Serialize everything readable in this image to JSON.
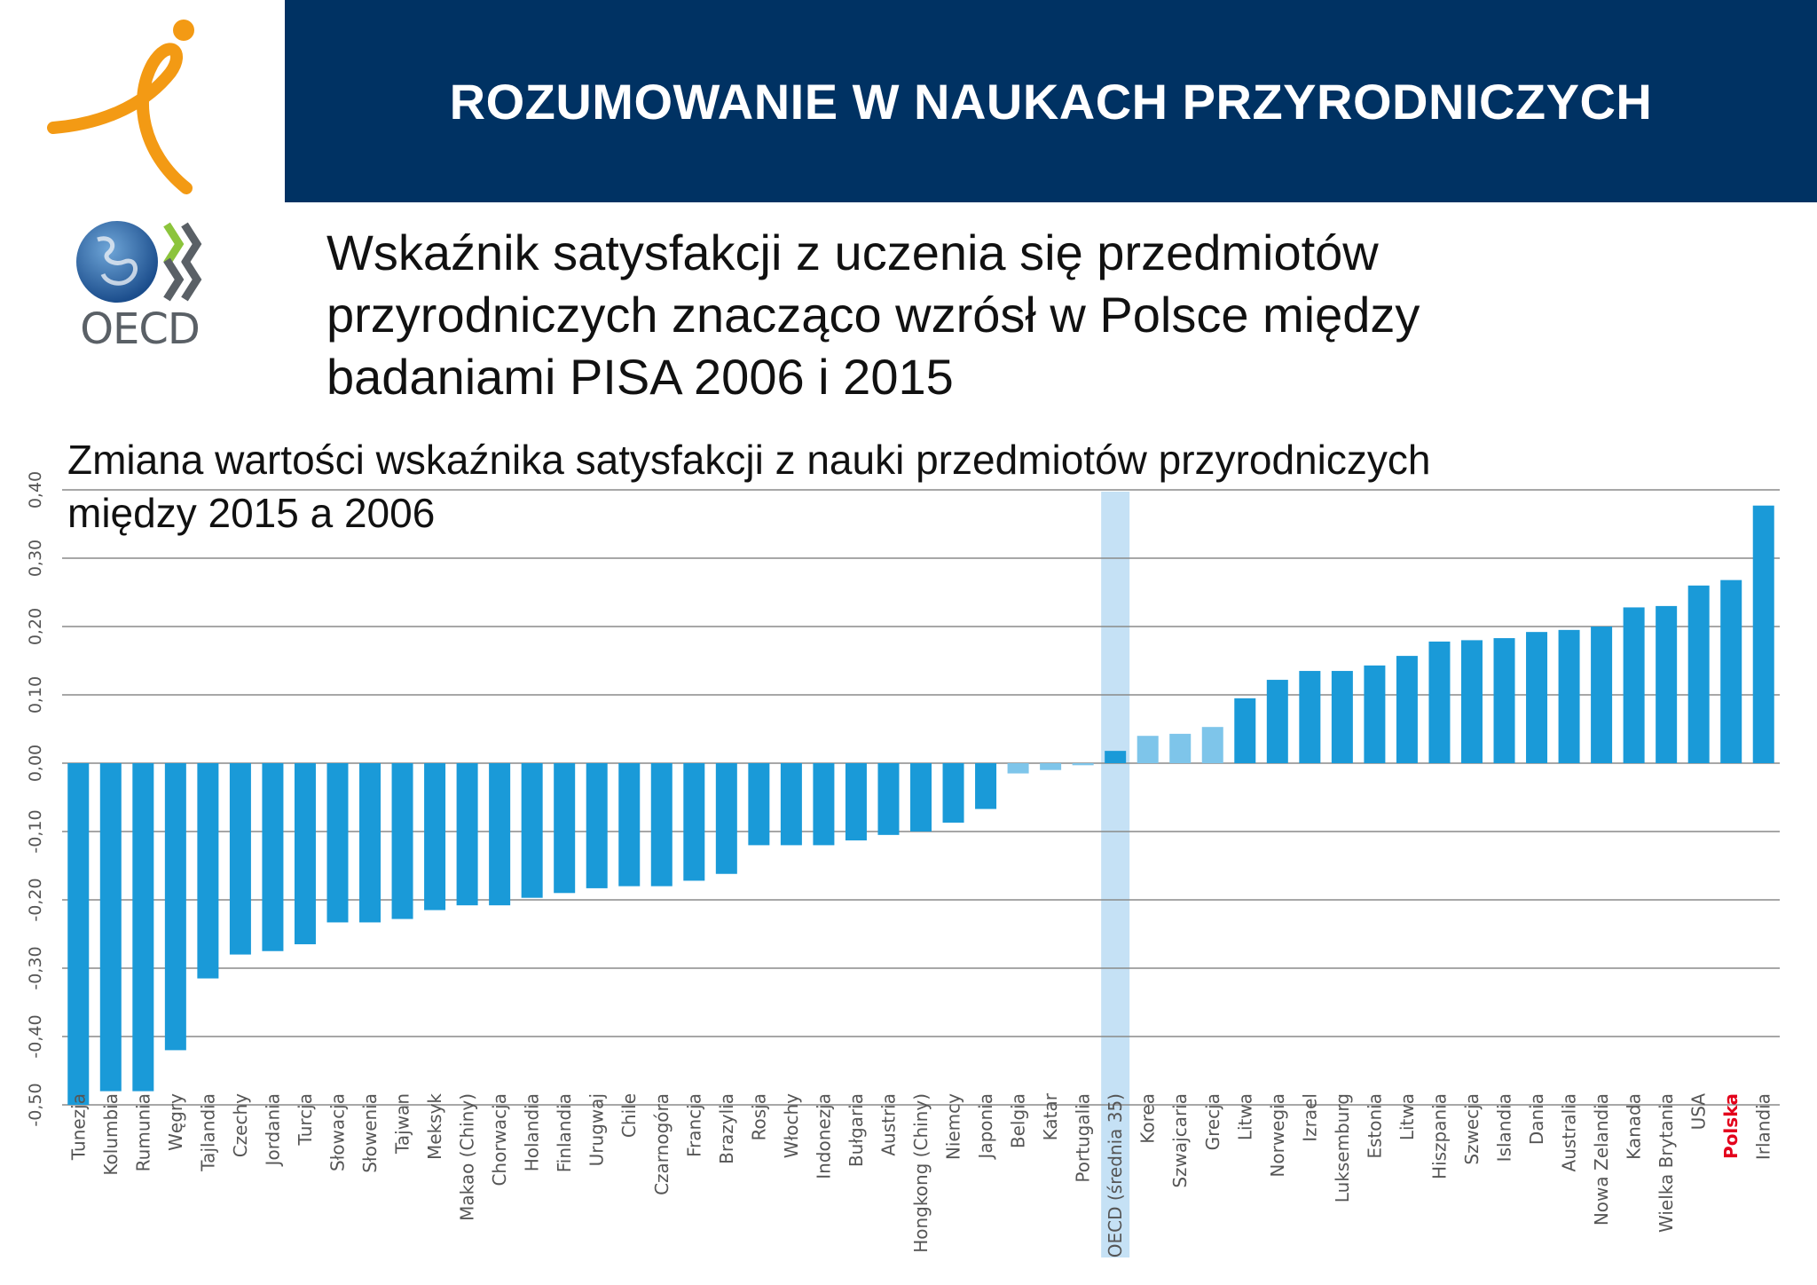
{
  "header": {
    "title": "ROZUMOWANIE W NAUKACH PRZYRODNICZYCH",
    "oecd_logo_text": "OECD",
    "banner_color": "#003263"
  },
  "subtitle_lines": [
    "Wskaźnik satysfakcji z uczenia się przedmiotów",
    "przyrodniczych znacząco wzrósł w Polsce między",
    "badaniami PISA 2006 i 2015"
  ],
  "chart_title_lines": [
    "Zmiana wartości wskaźnika satysfakcji z nauki przedmiotów przyrodniczych",
    "między 2015 a 2006"
  ],
  "chart_data": {
    "type": "bar",
    "ylim": [
      -0.5,
      0.4
    ],
    "yticks": [
      0.4,
      0.3,
      0.2,
      0.1,
      0.0,
      -0.1,
      -0.2,
      -0.3,
      -0.4,
      -0.5
    ],
    "ytick_labels": [
      "0,40",
      "0,30",
      "0,20",
      "0,10",
      "0,00",
      "-0,10",
      "-0,20",
      "-0,30",
      "-0,40",
      "-0,50"
    ],
    "grid": true,
    "categories": [
      "Tunezja",
      "Kolumbia",
      "Rumunia",
      "Węgry",
      "Tajlandia",
      "Czechy",
      "Jordania",
      "Turcja",
      "Słowacja",
      "Słowenia",
      "Tajwan",
      "Meksyk",
      "Makao (Chiny)",
      "Chorwacja",
      "Holandia",
      "Finlandia",
      "Urugwaj",
      "Chile",
      "Czarnogóra",
      "Francja",
      "Brazylia",
      "Rosja",
      "Włochy",
      "Indonezja",
      "Bułgaria",
      "Austria",
      "Hongkong (Chiny)",
      "Niemcy",
      "Japonia",
      "Belgia",
      "Katar",
      "Portugalia",
      "OECD (średnia 35)",
      "Korea",
      "Szwajcaria",
      "Grecja",
      "Litwa",
      "Norwegia",
      "Izrael",
      "Luksemburg",
      "Estonia",
      "Litwa",
      "Hiszpania",
      "Szwecja",
      "Islandia",
      "Dania",
      "Australia",
      "Nowa Zelandia",
      "Kanada",
      "Wielka Brytania",
      "USA",
      "Polska",
      "Irlandia"
    ],
    "values": [
      -0.5,
      -0.48,
      -0.48,
      -0.42,
      -0.315,
      -0.28,
      -0.275,
      -0.265,
      -0.233,
      -0.233,
      -0.228,
      -0.215,
      -0.208,
      -0.208,
      -0.197,
      -0.19,
      -0.183,
      -0.18,
      -0.18,
      -0.172,
      -0.162,
      -0.12,
      -0.12,
      -0.12,
      -0.113,
      -0.105,
      -0.1,
      -0.087,
      -0.067,
      -0.015,
      -0.01,
      -0.003,
      0.018,
      0.04,
      0.043,
      0.053,
      0.095,
      0.122,
      0.135,
      0.135,
      0.143,
      0.157,
      0.178,
      0.18,
      0.183,
      0.192,
      0.195,
      0.2,
      0.228,
      0.23,
      0.26,
      0.268,
      0.377
    ],
    "significant": [
      true,
      true,
      true,
      true,
      true,
      true,
      true,
      true,
      true,
      true,
      true,
      true,
      true,
      true,
      true,
      true,
      true,
      true,
      true,
      true,
      true,
      true,
      true,
      true,
      true,
      true,
      true,
      true,
      true,
      false,
      false,
      false,
      true,
      false,
      false,
      false,
      true,
      true,
      true,
      true,
      true,
      true,
      true,
      true,
      true,
      true,
      true,
      true,
      true,
      true,
      true,
      true,
      true
    ],
    "highlight_category": "Polska",
    "highlight_band_category": "OECD (średnia 35)",
    "colors": {
      "bar": "#1a9ad8",
      "bar_not_significant": "#7ec5ea",
      "band": "#c5e1f5",
      "grid": "#8a8a8a",
      "highlight_label": "#e3001b",
      "label": "#555555"
    }
  }
}
